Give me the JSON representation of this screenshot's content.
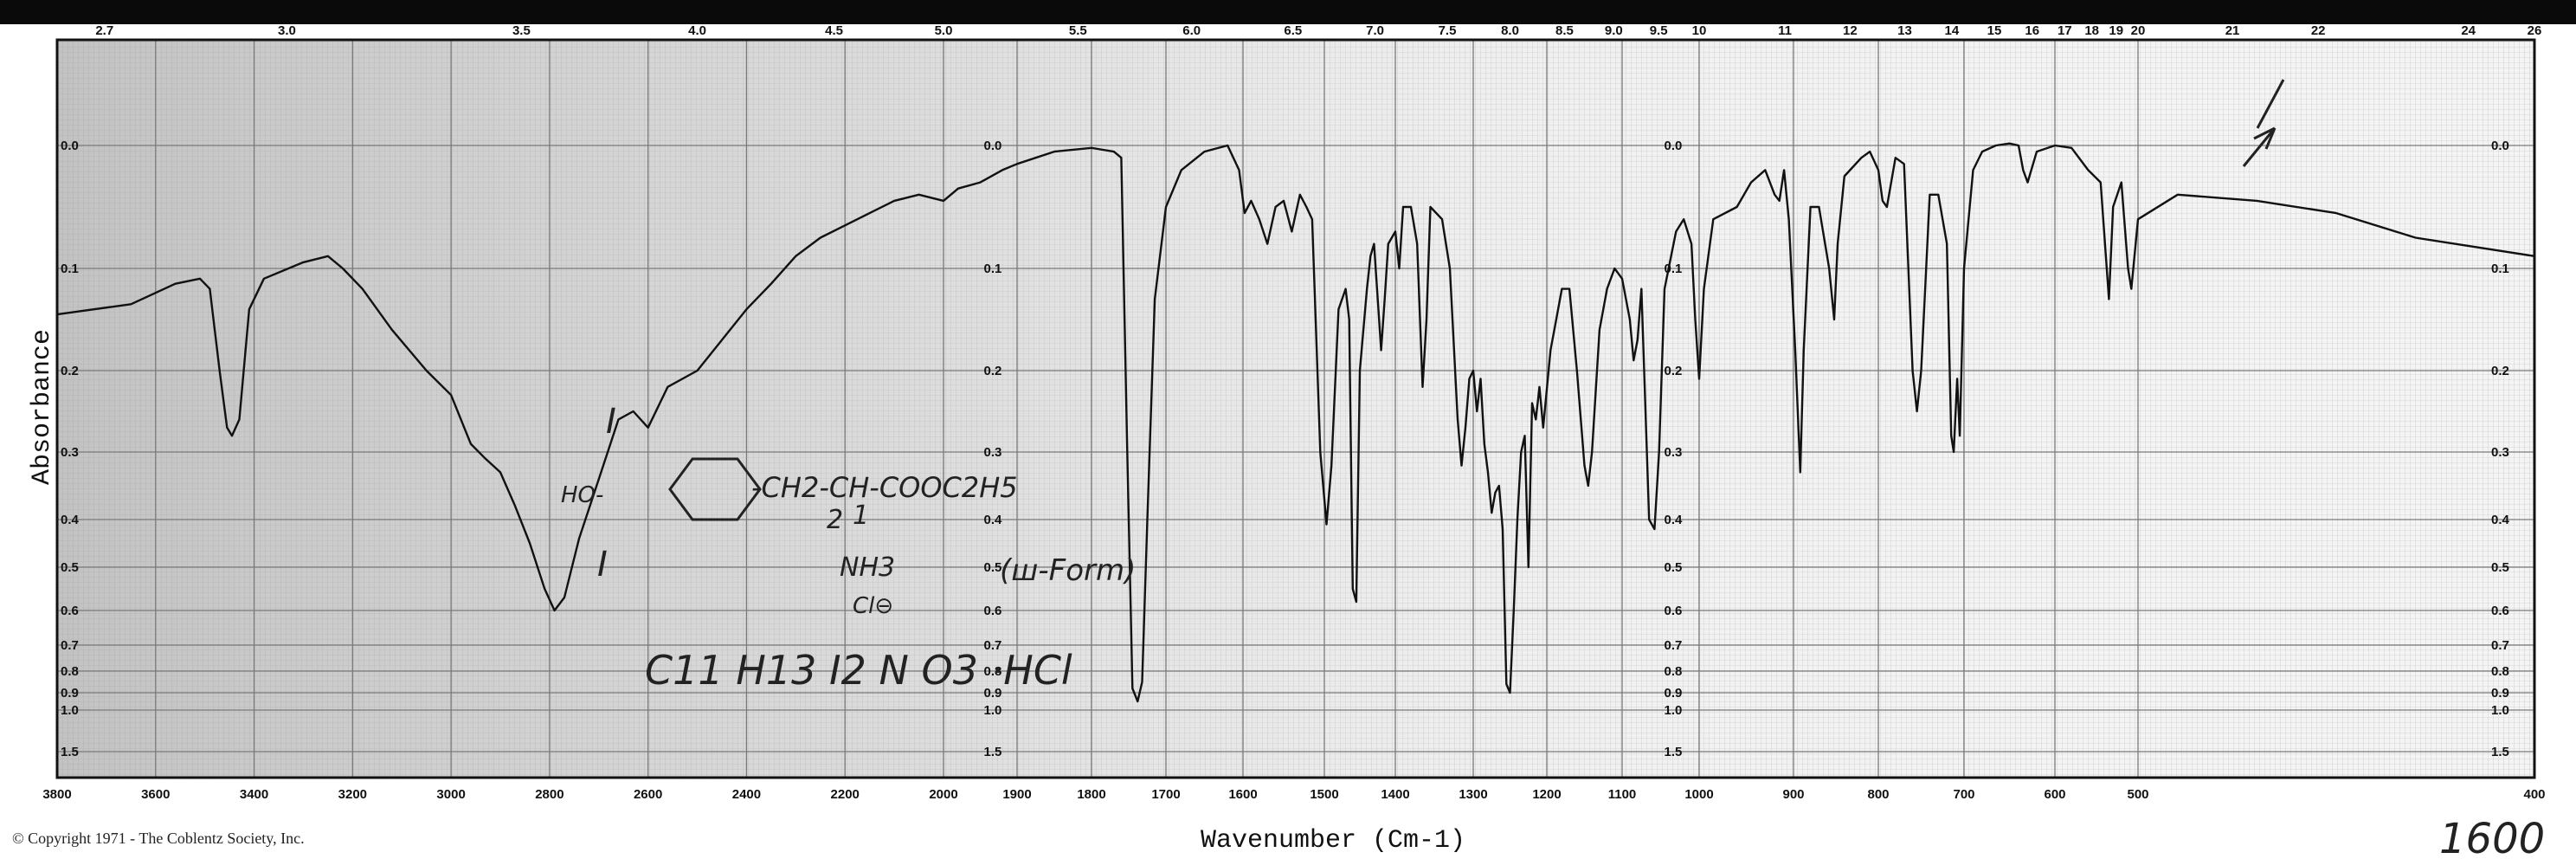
{
  "chart_data": {
    "type": "line",
    "title": "",
    "xlabel": "Wavenumber (Cm-1)",
    "ylabel": "Absorbance",
    "x_axis": {
      "range": [
        3800,
        400
      ],
      "ticks": [
        3800,
        3600,
        3400,
        3200,
        3000,
        2800,
        2600,
        2400,
        2200,
        2000,
        1900,
        1800,
        1700,
        1600,
        1500,
        1400,
        1300,
        1200,
        1100,
        1000,
        900,
        800,
        700,
        600,
        500,
        400
      ]
    },
    "top_axis": {
      "unit": "microns",
      "ticks": [
        "2.7",
        "3.0",
        "3.5",
        "4.0",
        "4.5",
        "5.0",
        "5.5",
        "6.0",
        "6.5",
        "7.0",
        "7.5",
        "8.0",
        "8.5",
        "9.0",
        "9.5",
        "10",
        "11",
        "12",
        "13",
        "14",
        "15",
        "16",
        "17",
        "18",
        "19",
        "20",
        "21",
        "22",
        "24",
        "26"
      ]
    },
    "y_axis": {
      "tick_labels": [
        "0.0",
        "0.1",
        "0.2",
        "0.3",
        "0.4",
        "0.5",
        "0.6",
        "0.7",
        "0.8",
        "0.9",
        "1.0",
        "1.5"
      ]
    },
    "grid": true,
    "series": [
      {
        "color": "#111111",
        "points": [
          [
            3800,
            0.145
          ],
          [
            3650,
            0.135
          ],
          [
            3560,
            0.115
          ],
          [
            3510,
            0.11
          ],
          [
            3490,
            0.12
          ],
          [
            3470,
            0.2
          ],
          [
            3455,
            0.27
          ],
          [
            3445,
            0.28
          ],
          [
            3430,
            0.26
          ],
          [
            3410,
            0.14
          ],
          [
            3380,
            0.11
          ],
          [
            3300,
            0.095
          ],
          [
            3250,
            0.09
          ],
          [
            3220,
            0.1
          ],
          [
            3180,
            0.12
          ],
          [
            3120,
            0.16
          ],
          [
            3050,
            0.2
          ],
          [
            3000,
            0.23
          ],
          [
            2960,
            0.29
          ],
          [
            2930,
            0.31
          ],
          [
            2900,
            0.33
          ],
          [
            2870,
            0.38
          ],
          [
            2840,
            0.45
          ],
          [
            2810,
            0.55
          ],
          [
            2790,
            0.6
          ],
          [
            2770,
            0.57
          ],
          [
            2740,
            0.44
          ],
          [
            2700,
            0.34
          ],
          [
            2660,
            0.26
          ],
          [
            2630,
            0.25
          ],
          [
            2600,
            0.27
          ],
          [
            2560,
            0.22
          ],
          [
            2500,
            0.2
          ],
          [
            2450,
            0.17
          ],
          [
            2400,
            0.14
          ],
          [
            2350,
            0.115
          ],
          [
            2300,
            0.09
          ],
          [
            2250,
            0.075
          ],
          [
            2200,
            0.065
          ],
          [
            2150,
            0.055
          ],
          [
            2100,
            0.045
          ],
          [
            2050,
            0.04
          ],
          [
            2000,
            0.045
          ],
          [
            1980,
            0.035
          ],
          [
            1950,
            0.03
          ],
          [
            1920,
            0.02
          ],
          [
            1900,
            0.015
          ],
          [
            1850,
            0.005
          ],
          [
            1800,
            0.002
          ],
          [
            1770,
            0.005
          ],
          [
            1760,
            0.01
          ],
          [
            1752,
            0.3
          ],
          [
            1745,
            0.88
          ],
          [
            1738,
            0.95
          ],
          [
            1732,
            0.85
          ],
          [
            1725,
            0.4
          ],
          [
            1715,
            0.13
          ],
          [
            1700,
            0.05
          ],
          [
            1680,
            0.02
          ],
          [
            1650,
            0.005
          ],
          [
            1620,
            0.0
          ],
          [
            1605,
            0.02
          ],
          [
            1598,
            0.055
          ],
          [
            1590,
            0.045
          ],
          [
            1580,
            0.06
          ],
          [
            1570,
            0.08
          ],
          [
            1560,
            0.05
          ],
          [
            1550,
            0.045
          ],
          [
            1540,
            0.07
          ],
          [
            1530,
            0.04
          ],
          [
            1522,
            0.05
          ],
          [
            1515,
            0.06
          ],
          [
            1505,
            0.3
          ],
          [
            1497,
            0.41
          ],
          [
            1490,
            0.32
          ],
          [
            1480,
            0.14
          ],
          [
            1470,
            0.12
          ],
          [
            1465,
            0.15
          ],
          [
            1460,
            0.55
          ],
          [
            1455,
            0.58
          ],
          [
            1450,
            0.2
          ],
          [
            1440,
            0.12
          ],
          [
            1435,
            0.09
          ],
          [
            1430,
            0.08
          ],
          [
            1420,
            0.18
          ],
          [
            1415,
            0.13
          ],
          [
            1410,
            0.08
          ],
          [
            1400,
            0.07
          ],
          [
            1395,
            0.1
          ],
          [
            1390,
            0.05
          ],
          [
            1380,
            0.05
          ],
          [
            1372,
            0.08
          ],
          [
            1365,
            0.22
          ],
          [
            1360,
            0.15
          ],
          [
            1355,
            0.05
          ],
          [
            1340,
            0.06
          ],
          [
            1330,
            0.1
          ],
          [
            1320,
            0.26
          ],
          [
            1315,
            0.32
          ],
          [
            1310,
            0.27
          ],
          [
            1305,
            0.21
          ],
          [
            1300,
            0.2
          ],
          [
            1295,
            0.25
          ],
          [
            1290,
            0.21
          ],
          [
            1285,
            0.29
          ],
          [
            1280,
            0.33
          ],
          [
            1275,
            0.39
          ],
          [
            1270,
            0.36
          ],
          [
            1265,
            0.35
          ],
          [
            1260,
            0.42
          ],
          [
            1255,
            0.86
          ],
          [
            1250,
            0.9
          ],
          [
            1245,
            0.6
          ],
          [
            1240,
            0.4
          ],
          [
            1235,
            0.3
          ],
          [
            1230,
            0.28
          ],
          [
            1225,
            0.5
          ],
          [
            1220,
            0.24
          ],
          [
            1215,
            0.26
          ],
          [
            1210,
            0.22
          ],
          [
            1205,
            0.27
          ],
          [
            1195,
            0.18
          ],
          [
            1190,
            0.16
          ],
          [
            1180,
            0.12
          ],
          [
            1170,
            0.12
          ],
          [
            1160,
            0.2
          ],
          [
            1150,
            0.32
          ],
          [
            1145,
            0.35
          ],
          [
            1140,
            0.3
          ],
          [
            1130,
            0.16
          ],
          [
            1120,
            0.12
          ],
          [
            1110,
            0.1
          ],
          [
            1100,
            0.11
          ],
          [
            1090,
            0.15
          ],
          [
            1085,
            0.19
          ],
          [
            1080,
            0.17
          ],
          [
            1075,
            0.12
          ],
          [
            1065,
            0.4
          ],
          [
            1058,
            0.42
          ],
          [
            1052,
            0.3
          ],
          [
            1045,
            0.12
          ],
          [
            1030,
            0.07
          ],
          [
            1020,
            0.06
          ],
          [
            1010,
            0.08
          ],
          [
            1005,
            0.15
          ],
          [
            1000,
            0.21
          ],
          [
            995,
            0.12
          ],
          [
            985,
            0.06
          ],
          [
            960,
            0.05
          ],
          [
            945,
            0.03
          ],
          [
            930,
            0.02
          ],
          [
            920,
            0.04
          ],
          [
            915,
            0.045
          ],
          [
            910,
            0.02
          ],
          [
            905,
            0.06
          ],
          [
            898,
            0.18
          ],
          [
            892,
            0.33
          ],
          [
            888,
            0.18
          ],
          [
            880,
            0.05
          ],
          [
            870,
            0.05
          ],
          [
            858,
            0.1
          ],
          [
            852,
            0.15
          ],
          [
            848,
            0.08
          ],
          [
            840,
            0.025
          ],
          [
            820,
            0.01
          ],
          [
            810,
            0.005
          ],
          [
            800,
            0.02
          ],
          [
            795,
            0.045
          ],
          [
            790,
            0.05
          ],
          [
            780,
            0.01
          ],
          [
            770,
            0.015
          ],
          [
            760,
            0.2
          ],
          [
            755,
            0.25
          ],
          [
            750,
            0.2
          ],
          [
            740,
            0.04
          ],
          [
            730,
            0.04
          ],
          [
            720,
            0.08
          ],
          [
            715,
            0.28
          ],
          [
            712,
            0.3
          ],
          [
            708,
            0.21
          ],
          [
            705,
            0.28
          ],
          [
            700,
            0.1
          ],
          [
            690,
            0.02
          ],
          [
            680,
            0.005
          ],
          [
            665,
            0.0
          ],
          [
            650,
            -0.002
          ],
          [
            640,
            0.0
          ],
          [
            635,
            0.02
          ],
          [
            630,
            0.03
          ],
          [
            620,
            0.005
          ],
          [
            600,
            0.0
          ],
          [
            580,
            0.002
          ],
          [
            560,
            0.02
          ],
          [
            545,
            0.03
          ],
          [
            535,
            0.13
          ],
          [
            530,
            0.05
          ],
          [
            520,
            0.03
          ],
          [
            512,
            0.1
          ],
          [
            508,
            0.12
          ],
          [
            500,
            0.06
          ],
          [
            490,
            0.04
          ],
          [
            470,
            0.045
          ],
          [
            450,
            0.055
          ],
          [
            430,
            0.075
          ],
          [
            400,
            0.09
          ]
        ]
      }
    ],
    "annotations": [
      "HO-",
      "I",
      "I",
      "-CH2-CH-COOC2H5",
      "2",
      "1",
      "NH3",
      "Cl⊖",
      "(ш-Form)",
      "C11 H13 I2 N O3 ·HCl",
      "1600"
    ]
  },
  "footer": {
    "copyright": "© Copyright 1971 - The Coblentz Society, Inc."
  }
}
